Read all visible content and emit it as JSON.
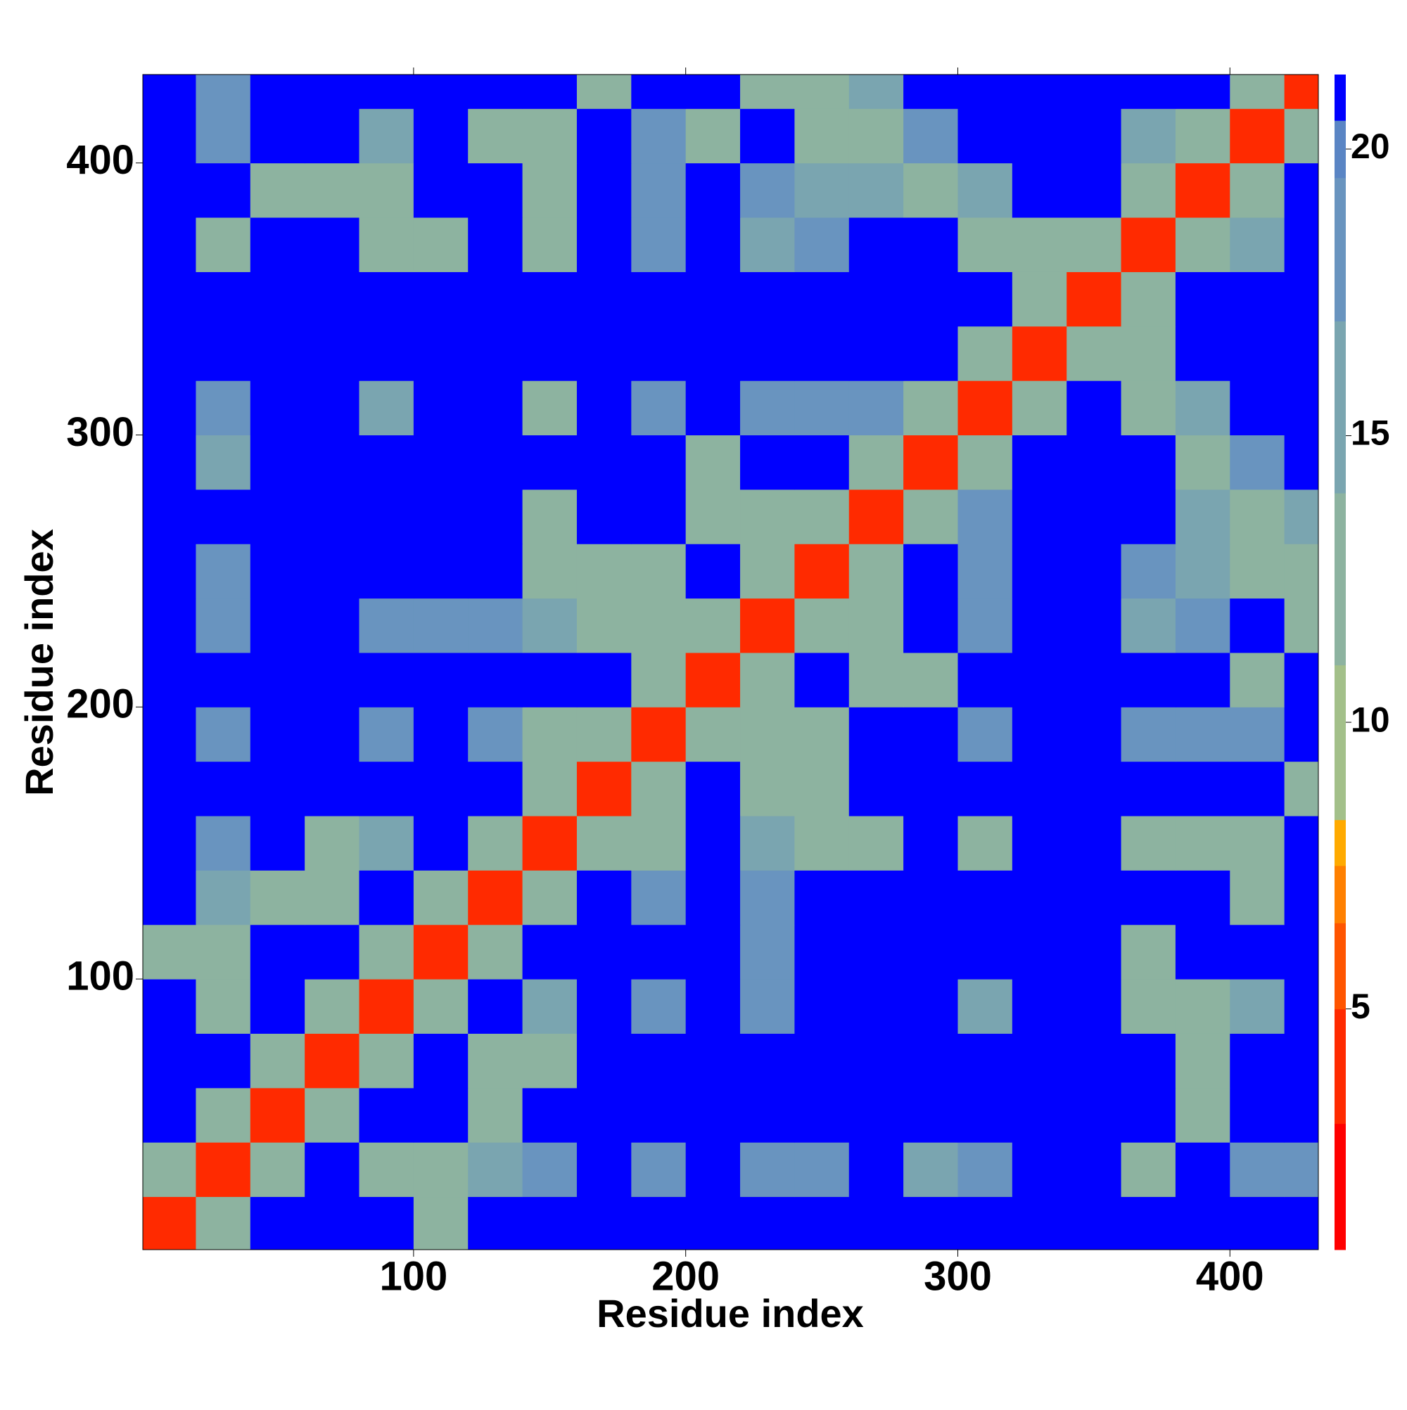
{
  "chart_data": {
    "type": "heatmap",
    "xlabel": "Residue index",
    "ylabel": "Residue index",
    "x": [
      10,
      30,
      50,
      70,
      90,
      110,
      130,
      150,
      170,
      190,
      210,
      230,
      250,
      270,
      290,
      310,
      330,
      350,
      370,
      390,
      410,
      430
    ],
    "y": [
      10,
      30,
      50,
      70,
      90,
      110,
      130,
      150,
      170,
      190,
      210,
      230,
      250,
      270,
      290,
      310,
      330,
      350,
      370,
      390,
      410,
      430
    ],
    "values": [
      [
        4,
        13,
        21,
        21,
        21,
        12,
        21,
        21,
        21,
        21,
        21,
        21,
        21,
        21,
        21,
        21,
        21,
        21,
        21,
        21,
        21,
        21
      ],
      [
        13,
        4,
        13,
        21,
        11,
        12,
        15,
        17,
        21,
        19,
        21,
        19,
        19,
        21,
        16,
        18,
        21,
        21,
        11,
        21,
        18,
        18
      ],
      [
        21,
        13,
        4,
        11,
        21,
        21,
        12,
        21,
        21,
        21,
        21,
        21,
        21,
        21,
        21,
        21,
        21,
        21,
        21,
        12,
        21,
        21
      ],
      [
        21,
        21,
        11,
        4,
        13,
        21,
        11,
        13,
        21,
        21,
        21,
        21,
        21,
        21,
        21,
        21,
        21,
        21,
        21,
        11,
        21,
        21
      ],
      [
        21,
        11,
        21,
        13,
        4,
        11,
        21,
        14,
        21,
        19,
        21,
        19,
        21,
        21,
        21,
        16,
        21,
        21,
        11,
        11,
        16,
        21
      ],
      [
        12,
        12,
        21,
        21,
        11,
        4,
        13,
        21,
        21,
        21,
        21,
        19,
        21,
        21,
        21,
        21,
        21,
        21,
        11,
        21,
        21,
        21
      ],
      [
        21,
        15,
        12,
        11,
        21,
        13,
        4,
        13,
        21,
        19,
        21,
        19,
        21,
        21,
        21,
        21,
        21,
        21,
        21,
        21,
        13,
        21
      ],
      [
        21,
        17,
        21,
        13,
        14,
        21,
        13,
        4,
        13,
        12,
        21,
        14,
        12,
        11,
        21,
        13,
        21,
        21,
        12,
        11,
        12,
        21
      ],
      [
        21,
        21,
        21,
        21,
        21,
        21,
        21,
        13,
        4,
        12,
        21,
        13,
        11,
        21,
        21,
        21,
        21,
        21,
        21,
        21,
        21,
        13
      ],
      [
        21,
        19,
        21,
        21,
        19,
        21,
        19,
        12,
        12,
        4,
        13,
        11,
        12,
        21,
        21,
        17,
        21,
        21,
        17,
        18,
        17,
        21
      ],
      [
        21,
        21,
        21,
        21,
        21,
        21,
        21,
        21,
        21,
        13,
        4,
        13,
        21,
        11,
        11,
        21,
        21,
        21,
        21,
        21,
        11,
        21
      ],
      [
        21,
        19,
        21,
        21,
        19,
        19,
        19,
        14,
        13,
        11,
        13,
        4,
        11,
        11,
        21,
        17,
        21,
        21,
        16,
        17,
        21,
        11
      ],
      [
        21,
        19,
        21,
        21,
        21,
        21,
        21,
        12,
        11,
        12,
        21,
        11,
        4,
        13,
        21,
        18,
        21,
        21,
        17,
        16,
        13,
        11
      ],
      [
        21,
        21,
        21,
        21,
        21,
        21,
        21,
        11,
        21,
        21,
        11,
        11,
        13,
        4,
        13,
        18,
        21,
        21,
        21,
        15,
        11,
        14
      ],
      [
        21,
        16,
        21,
        21,
        21,
        21,
        21,
        21,
        21,
        21,
        11,
        21,
        21,
        13,
        4,
        13,
        21,
        21,
        21,
        11,
        17,
        21
      ],
      [
        21,
        18,
        21,
        21,
        16,
        21,
        21,
        13,
        21,
        17,
        21,
        17,
        18,
        18,
        13,
        4,
        13,
        21,
        11,
        14,
        21,
        21
      ],
      [
        21,
        21,
        21,
        21,
        21,
        21,
        21,
        21,
        21,
        21,
        21,
        21,
        21,
        21,
        21,
        13,
        4,
        13,
        11,
        21,
        21,
        21
      ],
      [
        21,
        21,
        21,
        21,
        21,
        21,
        21,
        21,
        21,
        21,
        21,
        21,
        21,
        21,
        21,
        21,
        13,
        4,
        13,
        21,
        21,
        21
      ],
      [
        21,
        11,
        21,
        21,
        11,
        11,
        21,
        12,
        21,
        17,
        21,
        16,
        17,
        21,
        21,
        11,
        11,
        13,
        4,
        13,
        16,
        21
      ],
      [
        21,
        21,
        12,
        11,
        11,
        21,
        21,
        11,
        21,
        18,
        21,
        17,
        16,
        15,
        11,
        14,
        21,
        21,
        13,
        4,
        13,
        21
      ],
      [
        21,
        18,
        21,
        21,
        16,
        21,
        13,
        12,
        21,
        17,
        11,
        21,
        13,
        11,
        17,
        21,
        21,
        21,
        16,
        13,
        4,
        13
      ],
      [
        21,
        18,
        21,
        21,
        21,
        21,
        21,
        21,
        13,
        21,
        21,
        11,
        11,
        14,
        21,
        21,
        21,
        21,
        21,
        21,
        13,
        4
      ]
    ],
    "xlim": [
      0.5,
      432.5
    ],
    "ylim": [
      0.5,
      432.5
    ],
    "xticks": [
      100,
      200,
      300,
      400
    ],
    "yticks": [
      100,
      200,
      300,
      400
    ],
    "zlim": [
      0.8,
      21.3
    ],
    "zticks": [
      5,
      10,
      15,
      20
    ],
    "colorscale": [
      {
        "value": 0.8,
        "color": "#ff0000"
      },
      {
        "value": 3,
        "color": "#ff2a00"
      },
      {
        "value": 5,
        "color": "#ff5500"
      },
      {
        "value": 6.5,
        "color": "#ff8000"
      },
      {
        "value": 7.5,
        "color": "#ffaa00"
      },
      {
        "value": 8.3,
        "color": "#a3c08a"
      },
      {
        "value": 11,
        "color": "#8db3a0"
      },
      {
        "value": 14,
        "color": "#7aa5b0"
      },
      {
        "value": 17,
        "color": "#6994bf"
      },
      {
        "value": 19.5,
        "color": "#5a85c4"
      },
      {
        "value": 20.5,
        "color": "#0000ff"
      }
    ]
  }
}
